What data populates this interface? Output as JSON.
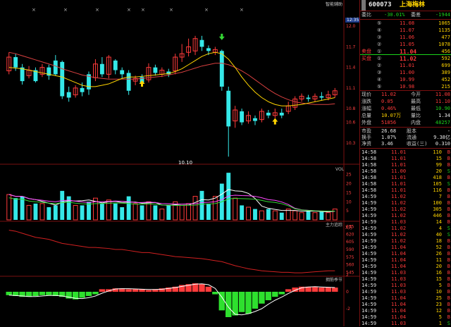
{
  "title": "智能辅助",
  "time_badge": "12:35",
  "low_marker": "10.10",
  "panes": {
    "vol": "VOL",
    "vol_unit": "X万",
    "fund": "主力追踪",
    "cycle": "拥筋季节"
  },
  "price_axis": [
    "12.0",
    "11.7",
    "11.4",
    "11.1",
    "10.8",
    "10.6",
    "10.3"
  ],
  "vol_axis": [
    "25",
    "20",
    "15",
    "10",
    "5"
  ],
  "fund_axis": [
    "635",
    "620",
    "605",
    "590",
    "575",
    "560",
    "545"
  ],
  "cycle_axis": [
    "2",
    "0",
    "-2"
  ],
  "colors": {
    "up": "#ff3b3b",
    "down": "#35e8e8",
    "ma5": "#ffffff",
    "ma10": "#ffd400",
    "ma20": "#ff4aff",
    "border": "#7a1010"
  },
  "chart_data": {
    "type": "candlestick",
    "ylim": [
      10.0,
      12.3
    ],
    "candles": [
      {
        "o": 11.35,
        "c": 11.55,
        "h": 11.62,
        "l": 11.3
      },
      {
        "o": 11.55,
        "c": 11.4,
        "h": 11.6,
        "l": 11.35
      },
      {
        "o": 11.4,
        "c": 11.2,
        "h": 11.45,
        "l": 11.15
      },
      {
        "o": 11.28,
        "c": 11.36,
        "h": 11.42,
        "l": 11.24
      },
      {
        "o": 11.36,
        "c": 11.2,
        "h": 11.4,
        "l": 11.18
      },
      {
        "o": 11.3,
        "c": 11.4,
        "h": 11.45,
        "l": 11.26
      },
      {
        "o": 11.4,
        "c": 11.28,
        "h": 11.44,
        "l": 11.22
      },
      {
        "o": 11.5,
        "c": 11.3,
        "h": 11.58,
        "l": 11.28
      },
      {
        "o": 11.48,
        "c": 10.98,
        "h": 11.5,
        "l": 10.94
      },
      {
        "o": 11.04,
        "c": 10.96,
        "h": 11.12,
        "l": 10.9
      },
      {
        "o": 11.0,
        "c": 11.1,
        "h": 11.14,
        "l": 10.96
      },
      {
        "o": 11.1,
        "c": 11.04,
        "h": 11.18,
        "l": 10.98
      },
      {
        "o": 11.3,
        "c": 11.08,
        "h": 11.34,
        "l": 11.0
      },
      {
        "o": 11.25,
        "c": 11.45,
        "h": 11.52,
        "l": 11.2
      },
      {
        "o": 11.45,
        "c": 11.3,
        "h": 11.55,
        "l": 11.26
      },
      {
        "o": 11.3,
        "c": 11.55,
        "h": 11.58,
        "l": 11.24
      },
      {
        "o": 11.5,
        "c": 11.36,
        "h": 11.52,
        "l": 11.3
      },
      {
        "o": 11.36,
        "c": 11.3,
        "h": 11.4,
        "l": 11.24
      },
      {
        "o": 11.32,
        "c": 11.06,
        "h": 11.36,
        "l": 11.0
      },
      {
        "o": 11.2,
        "c": 11.24,
        "h": 11.28,
        "l": 11.14
      },
      {
        "o": 11.26,
        "c": 11.18,
        "h": 11.3,
        "l": 11.12
      },
      {
        "o": 11.22,
        "c": 11.4,
        "h": 11.46,
        "l": 11.18
      },
      {
        "o": 11.4,
        "c": 11.32,
        "h": 11.44,
        "l": 11.28
      },
      {
        "o": 11.3,
        "c": 11.36,
        "h": 11.4,
        "l": 11.26
      },
      {
        "o": 11.34,
        "c": 11.3,
        "h": 11.38,
        "l": 11.26
      },
      {
        "o": 11.35,
        "c": 11.55,
        "h": 11.6,
        "l": 11.3
      },
      {
        "o": 11.55,
        "c": 11.6,
        "h": 11.74,
        "l": 11.48
      },
      {
        "o": 11.62,
        "c": 11.7,
        "h": 11.82,
        "l": 11.56
      },
      {
        "o": 11.64,
        "c": 11.82,
        "h": 11.86,
        "l": 11.58
      },
      {
        "o": 11.8,
        "c": 11.7,
        "h": 11.86,
        "l": 11.64
      },
      {
        "o": 11.68,
        "c": 11.64,
        "h": 11.72,
        "l": 11.58
      },
      {
        "o": 11.62,
        "c": 11.66,
        "h": 11.7,
        "l": 11.58
      },
      {
        "o": 11.64,
        "c": 11.12,
        "h": 11.66,
        "l": 11.06
      },
      {
        "o": 11.06,
        "c": 10.54,
        "h": 11.12,
        "l": 10.1
      },
      {
        "o": 10.62,
        "c": 10.78,
        "h": 10.84,
        "l": 10.52
      },
      {
        "o": 10.76,
        "c": 10.6,
        "h": 10.8,
        "l": 10.56
      },
      {
        "o": 10.62,
        "c": 10.7,
        "h": 10.76,
        "l": 10.58
      },
      {
        "o": 10.66,
        "c": 10.62,
        "h": 10.7,
        "l": 10.56
      },
      {
        "o": 10.64,
        "c": 10.76,
        "h": 10.8,
        "l": 10.6
      },
      {
        "o": 10.74,
        "c": 10.7,
        "h": 10.78,
        "l": 10.66
      },
      {
        "o": 10.7,
        "c": 10.74,
        "h": 10.8,
        "l": 10.66
      },
      {
        "o": 10.74,
        "c": 10.7,
        "h": 10.8,
        "l": 10.66
      },
      {
        "o": 10.76,
        "c": 10.84,
        "h": 10.9,
        "l": 10.72
      },
      {
        "o": 10.82,
        "c": 10.94,
        "h": 10.98,
        "l": 10.78
      },
      {
        "o": 10.94,
        "c": 10.98,
        "h": 11.02,
        "l": 10.9
      },
      {
        "o": 10.96,
        "c": 10.94,
        "h": 11.0,
        "l": 10.9
      },
      {
        "o": 10.94,
        "c": 10.98,
        "h": 11.02,
        "l": 10.9
      },
      {
        "o": 10.98,
        "c": 10.96,
        "h": 11.04,
        "l": 10.92
      },
      {
        "o": 10.96,
        "c": 11.0,
        "h": 11.06,
        "l": 10.92
      },
      {
        "o": 11.0,
        "c": 11.06,
        "h": 11.1,
        "l": 10.96
      }
    ],
    "ma5": [
      11.42,
      11.4,
      11.36,
      11.34,
      11.3,
      11.3,
      11.28,
      11.28,
      11.22,
      11.14,
      11.1,
      11.06,
      11.08,
      11.12,
      11.18,
      11.24,
      11.3,
      11.36,
      11.3,
      11.28,
      11.26,
      11.28,
      11.3,
      11.32,
      11.34,
      11.38,
      11.44,
      11.52,
      11.62,
      11.68,
      11.7,
      11.66,
      11.6,
      11.4,
      11.1,
      10.9,
      10.8,
      10.7,
      10.66,
      10.68,
      10.7,
      10.72,
      10.76,
      10.8,
      10.86,
      10.9,
      10.94,
      10.96,
      10.98,
      11.0
    ],
    "ma10": [
      11.4,
      11.39,
      11.38,
      11.36,
      11.34,
      11.32,
      11.3,
      11.28,
      11.26,
      11.22,
      11.18,
      11.14,
      11.12,
      11.12,
      11.14,
      11.16,
      11.2,
      11.24,
      11.26,
      11.26,
      11.27,
      11.28,
      11.29,
      11.3,
      11.31,
      11.34,
      11.38,
      11.44,
      11.5,
      11.56,
      11.6,
      11.62,
      11.6,
      11.52,
      11.4,
      11.26,
      11.14,
      11.04,
      10.96,
      10.9,
      10.86,
      10.84,
      10.84,
      10.85,
      10.86,
      10.88,
      10.9,
      10.92,
      10.94,
      10.96
    ],
    "ma20": [
      11.62,
      11.6,
      11.57,
      11.54,
      11.51,
      11.48,
      11.45,
      11.42,
      11.38,
      11.35,
      11.32,
      11.29,
      11.27,
      11.25,
      11.24,
      11.23,
      11.23,
      11.23,
      11.23,
      11.23,
      11.24,
      11.25,
      11.26,
      11.27,
      11.29,
      11.31,
      11.33,
      11.36,
      11.39,
      11.42,
      11.44,
      11.46,
      11.46,
      11.44,
      11.4,
      11.35,
      11.29,
      11.22,
      11.15,
      11.08,
      11.02,
      10.97,
      10.93,
      10.9,
      10.88,
      10.87,
      10.86,
      10.86,
      10.86,
      10.87
    ],
    "volume": [
      14,
      12,
      13,
      8,
      9,
      9,
      7,
      8,
      16,
      13,
      8,
      8,
      10,
      12,
      9,
      11,
      9,
      7,
      13,
      9,
      8,
      10,
      8,
      6,
      8,
      10,
      8,
      9,
      13,
      16,
      9,
      13,
      20,
      26,
      12,
      8,
      7,
      6,
      5,
      6,
      5,
      4,
      6,
      5,
      4,
      5,
      4,
      5,
      4,
      6
    ],
    "fund_line": [
      628,
      626,
      622,
      618,
      614,
      612,
      610,
      606,
      602,
      600,
      598,
      596,
      594,
      594,
      593,
      592,
      590,
      590,
      588,
      586,
      584,
      584,
      582,
      580,
      578,
      576,
      575,
      574,
      573,
      572,
      570,
      568,
      566,
      562,
      558,
      555,
      552,
      550,
      548,
      547,
      546,
      545,
      545,
      544,
      544,
      545,
      546,
      547,
      548,
      548
    ],
    "cycle_bars": [
      -0.4,
      -0.5,
      -0.6,
      -0.6,
      -0.5,
      -0.4,
      -0.4,
      -0.5,
      -0.6,
      -0.8,
      -0.9,
      -0.7,
      -0.5,
      -0.3,
      0.3,
      0.3,
      0.4,
      0.4,
      0.3,
      0.3,
      0.3,
      0.2,
      0.3,
      0.4,
      0.5,
      0.6,
      0.8,
      0.9,
      1.0,
      0.9,
      0.6,
      -0.3,
      -2.2,
      -3.0,
      -2.8,
      -2.4,
      -2.6,
      -2.0,
      -1.4,
      -1.0,
      -0.6,
      -0.3,
      0.3,
      0.5,
      0.6,
      0.6,
      0.6,
      0.5,
      0.5,
      0.5
    ]
  },
  "stock": {
    "code": "600073",
    "name": "上海梅林"
  },
  "weibi": {
    "label1": "委比",
    "val1": "-30.01%",
    "label2": "委差",
    "val2": "-1944"
  },
  "sells": [
    {
      "tag": "⑤",
      "price": "11.08",
      "vol": "1065"
    },
    {
      "tag": "④",
      "price": "11.07",
      "vol": "1135"
    },
    {
      "tag": "③",
      "price": "11.06",
      "vol": "477"
    },
    {
      "tag": "②",
      "price": "11.05",
      "vol": "1078"
    },
    {
      "tag": "①",
      "price": "11.04",
      "vol": "456",
      "label": "卖盘"
    }
  ],
  "buys": [
    {
      "tag": "①",
      "price": "11.02",
      "vol": "592",
      "label": "买盘"
    },
    {
      "tag": "②",
      "price": "11.01",
      "vol": "699"
    },
    {
      "tag": "③",
      "price": "11.00",
      "vol": "389"
    },
    {
      "tag": "④",
      "price": "10.99",
      "vol": "452"
    },
    {
      "tag": "⑤",
      "price": "10.98",
      "vol": "215"
    }
  ],
  "stats": [
    {
      "k1": "现价",
      "v1": "11.02",
      "c1": "red",
      "k2": "今开",
      "v2": "11.08",
      "c2": "red"
    },
    {
      "k1": "涨跌",
      "v1": "0.05",
      "c1": "red",
      "k2": "最高",
      "v2": "11.10",
      "c2": "red"
    },
    {
      "k1": "涨幅",
      "v1": "0.46%",
      "c1": "red",
      "k2": "最低",
      "v2": "10.90",
      "c2": "grn"
    },
    {
      "k1": "总量",
      "v1": "10.07万",
      "c1": "yel",
      "k2": "量比",
      "v2": "1.34",
      "c2": "wht"
    },
    {
      "k1": "外盘",
      "v1": "51856",
      "c1": "red",
      "k2": "内盘",
      "v2": "48257",
      "c2": "grn"
    }
  ],
  "stats2": [
    {
      "k1": "市盈",
      "v1": "26.68",
      "k2": "股本",
      "v2": "-"
    },
    {
      "k1": "换手",
      "v1": "1.07%",
      "k2": "流通",
      "v2": "9.38亿"
    },
    {
      "k1": "净资",
      "v1": "3.46",
      "k2": "收益(三)",
      "v2": "0.310"
    }
  ],
  "ticks": [
    {
      "t": "14:58",
      "p": "11.01",
      "v": "110",
      "d": "B"
    },
    {
      "t": "14:58",
      "p": "11.01",
      "v": "15",
      "d": "B"
    },
    {
      "t": "14:58",
      "p": "11.01",
      "v": "99",
      "d": "B"
    },
    {
      "t": "14:58",
      "p": "11.00",
      "v": "20",
      "d": "S"
    },
    {
      "t": "14:58",
      "p": "11.01",
      "v": "418",
      "d": "B"
    },
    {
      "t": "14:58",
      "p": "11.01",
      "v": "105",
      "d": "S"
    },
    {
      "t": "14:58",
      "p": "11.01",
      "v": "116",
      "d": "B"
    },
    {
      "t": "14:59",
      "p": "11.02",
      "v": "7",
      "d": "B"
    },
    {
      "t": "14:59",
      "p": "11.02",
      "v": "100",
      "d": "B"
    },
    {
      "t": "14:59",
      "p": "11.02",
      "v": "305",
      "d": "B"
    },
    {
      "t": "14:59",
      "p": "11.02",
      "v": "446",
      "d": "B"
    },
    {
      "t": "14:59",
      "p": "11.03",
      "v": "14",
      "d": "B"
    },
    {
      "t": "14:59",
      "p": "11.02",
      "v": "4",
      "d": "S"
    },
    {
      "t": "14:59",
      "p": "11.02",
      "v": "40",
      "d": "S"
    },
    {
      "t": "14:59",
      "p": "11.02",
      "v": "18",
      "d": "B"
    },
    {
      "t": "14:59",
      "p": "11.04",
      "v": "52",
      "d": "B"
    },
    {
      "t": "14:59",
      "p": "11.04",
      "v": "26",
      "d": "B"
    },
    {
      "t": "14:59",
      "p": "11.04",
      "v": "11",
      "d": "B"
    },
    {
      "t": "14:59",
      "p": "11.04",
      "v": "20",
      "d": "B"
    },
    {
      "t": "14:59",
      "p": "11.03",
      "v": "16",
      "d": "B"
    },
    {
      "t": "14:59",
      "p": "11.03",
      "v": "15",
      "d": "B"
    },
    {
      "t": "14:59",
      "p": "11.03",
      "v": "5",
      "d": "B"
    },
    {
      "t": "14:59",
      "p": "11.03",
      "v": "10",
      "d": "B"
    },
    {
      "t": "14:59",
      "p": "11.04",
      "v": "25",
      "d": "B"
    },
    {
      "t": "14:59",
      "p": "11.04",
      "v": "23",
      "d": "B"
    },
    {
      "t": "14:59",
      "p": "11.04",
      "v": "12",
      "d": "B"
    },
    {
      "t": "14:59",
      "p": "11.04",
      "v": "5",
      "d": "B"
    },
    {
      "t": "14:59",
      "p": "11.03",
      "v": "1",
      "d": "S"
    }
  ]
}
